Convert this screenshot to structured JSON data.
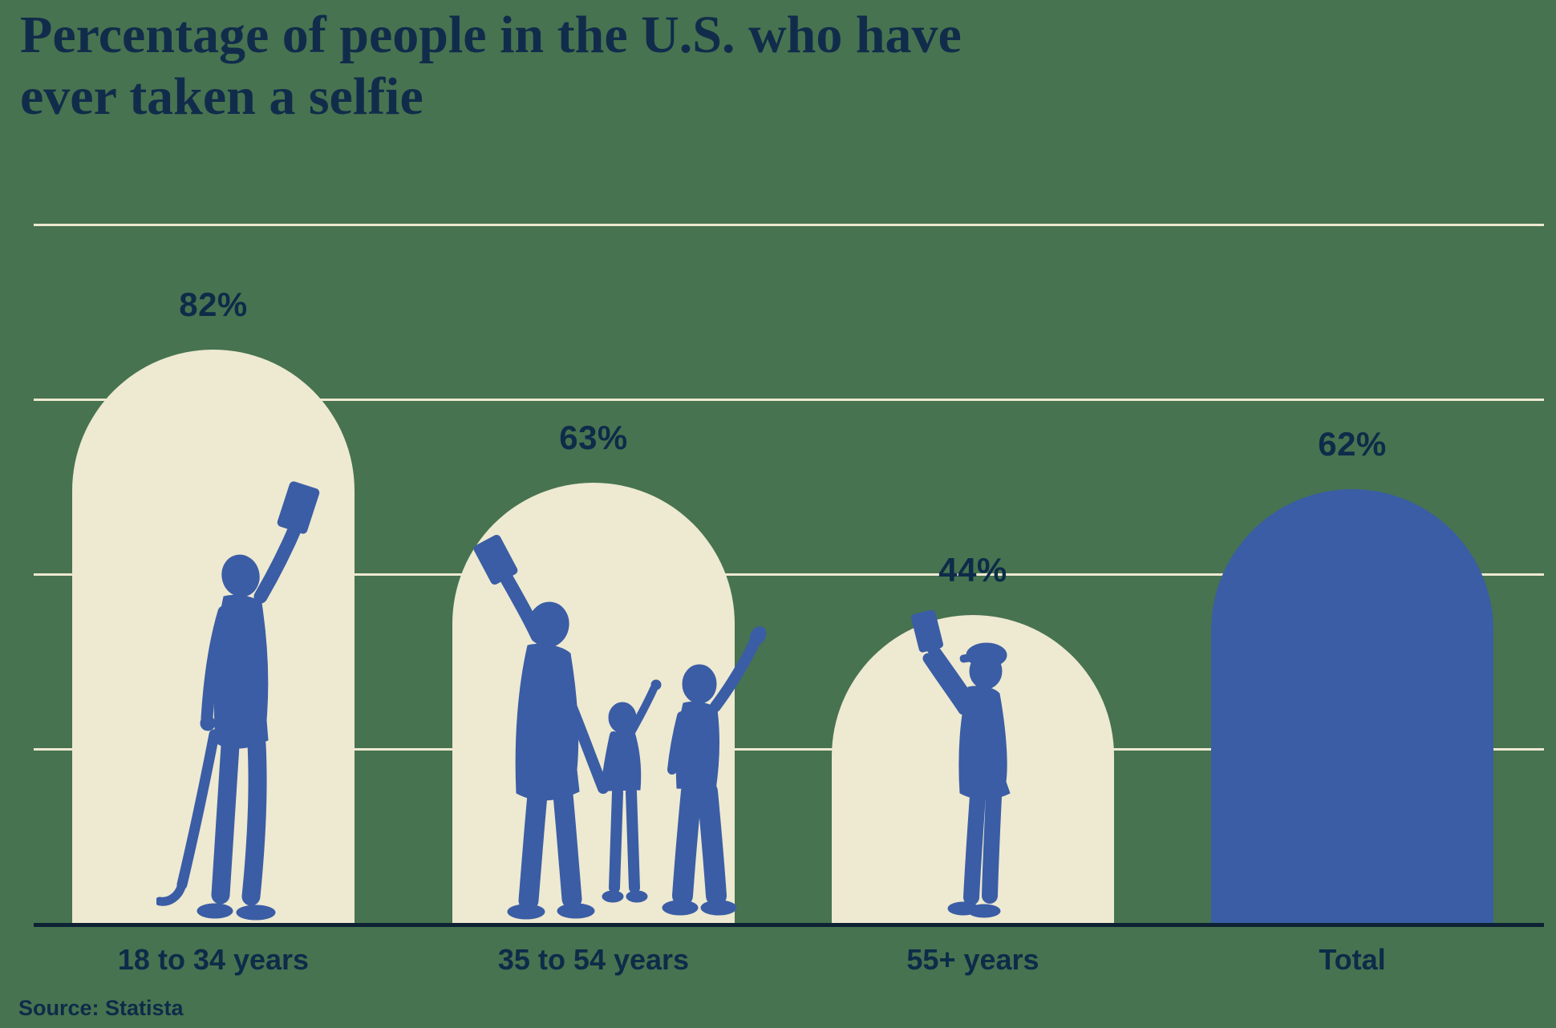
{
  "title": {
    "line1": "Percentage of people in the U.S. who have",
    "line2": "ever taken a selfie"
  },
  "source": "Source: Statista",
  "colors": {
    "background_green": "#477350",
    "bar_cream": "#EEE9D1",
    "bar_blue": "#3A5DA5",
    "silhouette_blue": "#3A5DA5",
    "text_navy": "#0E2B49",
    "title_navy": "#112C4B",
    "gridline_cream": "#EEE9D1",
    "axis_dark": "#0D2233"
  },
  "chart_data": {
    "type": "bar",
    "title": "Percentage of people in the U.S. who have ever taken a selfie",
    "categories": [
      "18 to 34 years",
      "35 to 54 years",
      "55+ years",
      "Total"
    ],
    "values": [
      82,
      63,
      44,
      62
    ],
    "value_labels": [
      "82%",
      "63%",
      "44%",
      "62%"
    ],
    "bar_colors": [
      "#EEE9D1",
      "#EEE9D1",
      "#EEE9D1",
      "#3A5DA5"
    ],
    "xlabel": "",
    "ylabel": "",
    "ylim": [
      0,
      100
    ],
    "gridline_step_percent": 25,
    "grid": "horizontal lines behind bars",
    "legend": "none",
    "bar_shape": "arch (semicircle top)",
    "decorations": [
      "skateboarder taking selfie silhouette in bar 1",
      "adult with two children taking selfie silhouette in bar 2",
      "older man in flat cap taking selfie silhouette in bar 3",
      "no figure in Total bar"
    ]
  }
}
